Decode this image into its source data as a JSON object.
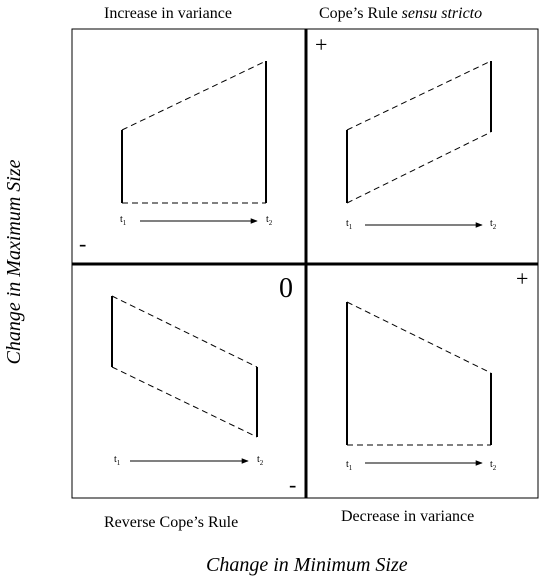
{
  "quadrants": {
    "top_left": "Increase in variance",
    "top_right_prefix": "Cope’s Rule ",
    "top_right_italic": "sensu stricto",
    "bottom_left": "Reverse Cope’s Rule",
    "bottom_right": "Decrease in variance"
  },
  "axes": {
    "x_label": "Change in Minimum Size",
    "y_label": "Change in Maximum Size",
    "origin": "0"
  },
  "signs": {
    "plus": "+",
    "minus": "-"
  },
  "time": {
    "t1_base": "t",
    "t1_sub": "1",
    "t2_base": "t",
    "t2_sub": "2"
  }
}
